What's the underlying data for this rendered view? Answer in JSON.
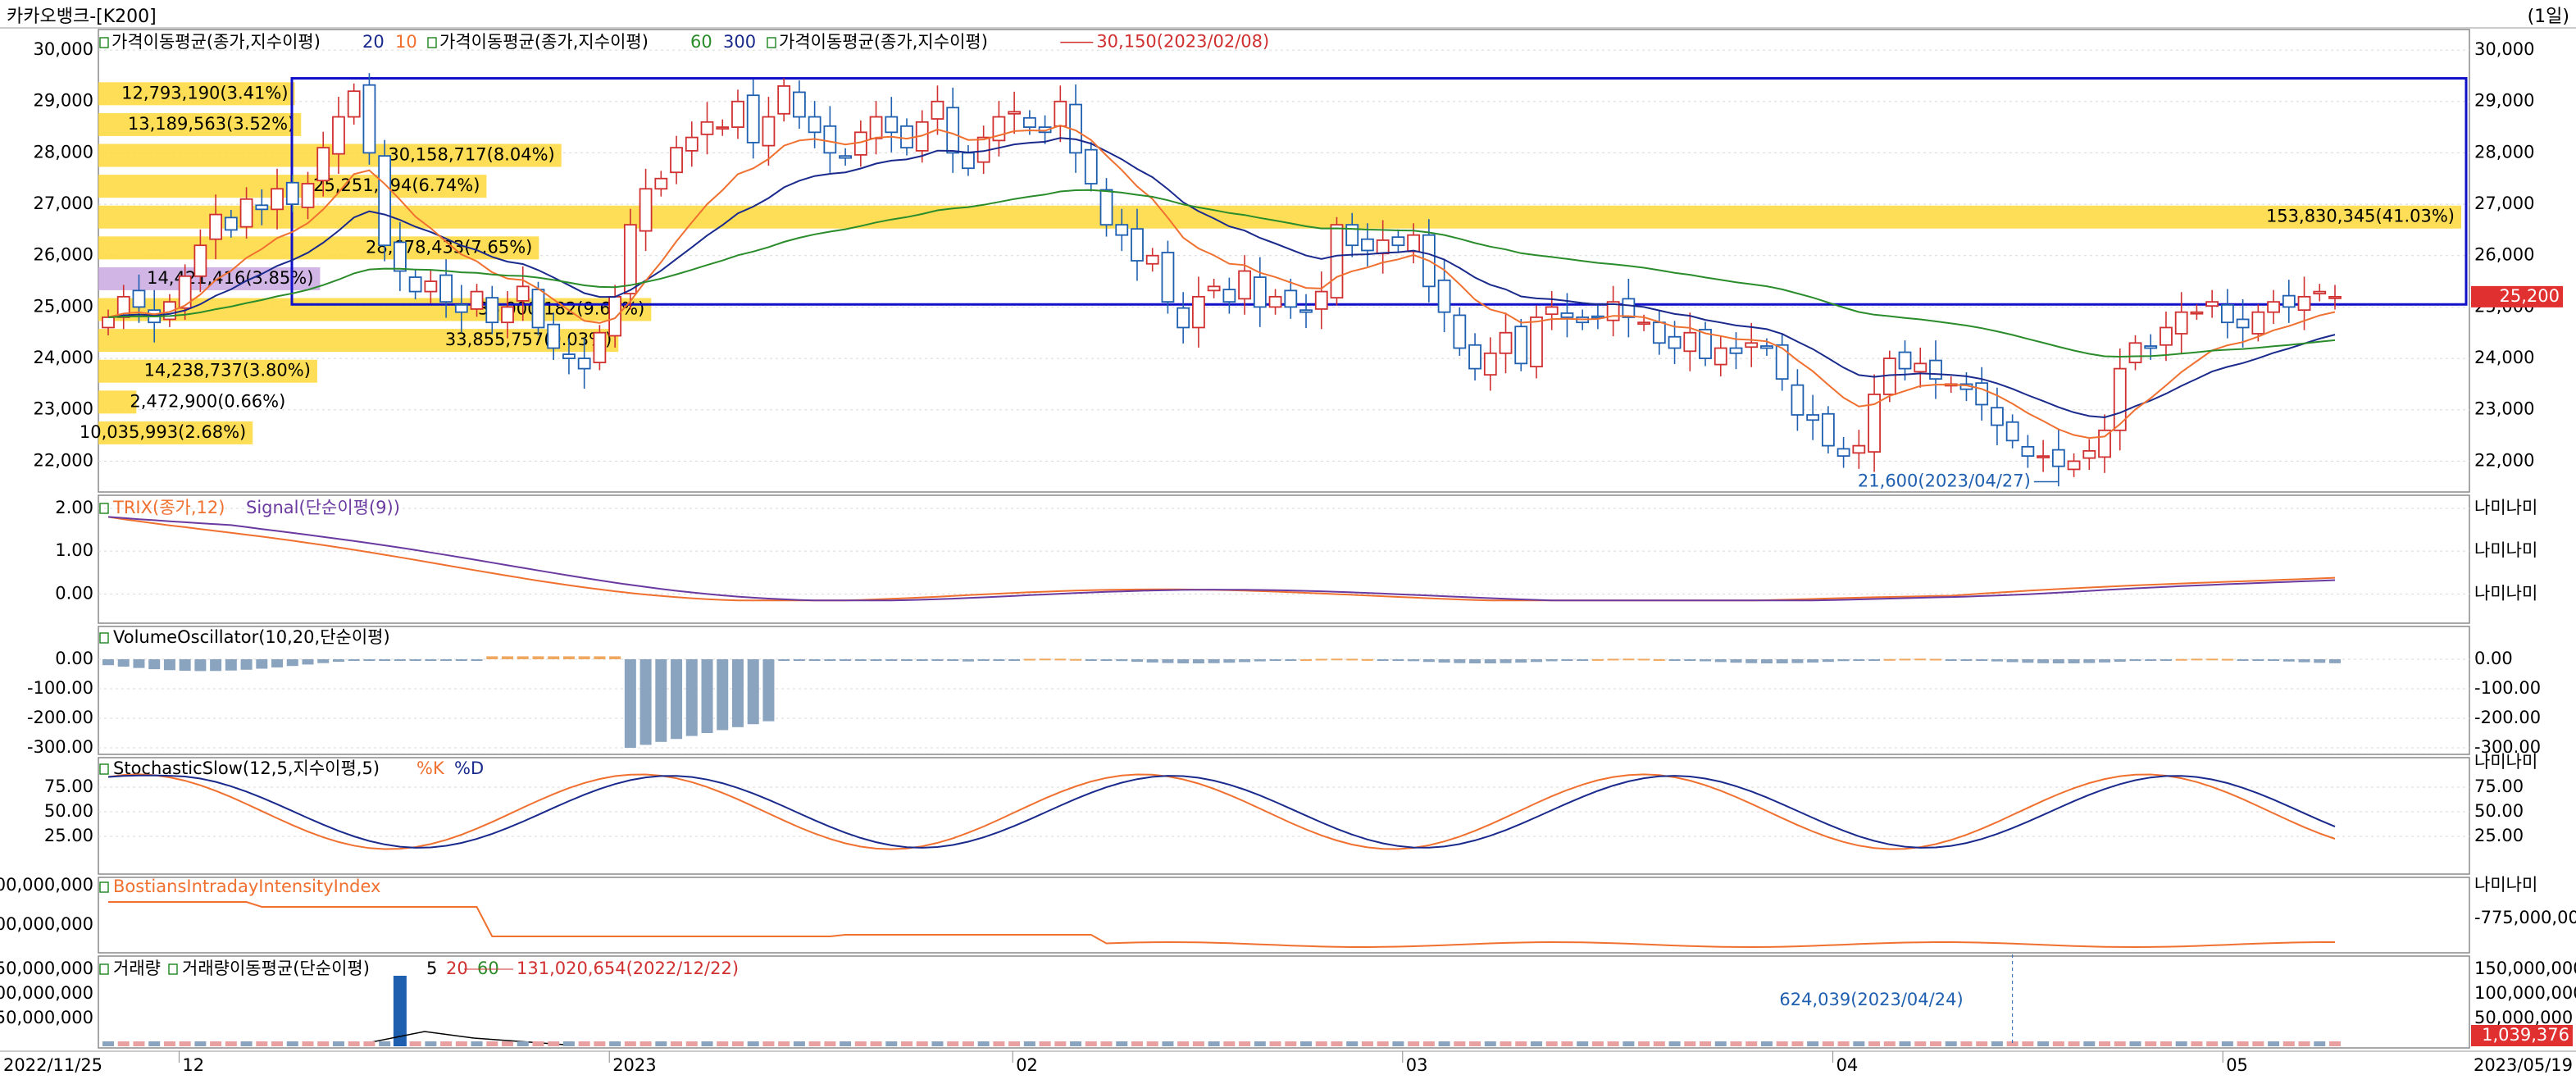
{
  "window": {
    "title": "카카오뱅크-[K200]",
    "period": "(1일)",
    "current_price": "25,200"
  },
  "price_panel": {
    "legend": [
      {
        "label": "가격이동평균(종가,지수이평)",
        "params": [
          {
            "text": "20",
            "color": "#1a2a8c"
          },
          {
            "text": "10",
            "color": "#f07030"
          }
        ]
      },
      {
        "label": "가격이동평균(종가,지수이평)",
        "params": [
          {
            "text": "60",
            "color": "#2a8c2a"
          },
          {
            "text": "300",
            "color": "#1a2a8c"
          }
        ]
      },
      {
        "label": "가격이동평균(종가,지수이평)",
        "params": []
      }
    ],
    "y_ticks": [
      "30,000",
      "29,000",
      "28,000",
      "27,000",
      "26,000",
      "25,000",
      "24,000",
      "23,000",
      "22,000"
    ],
    "high_annotation": "30,150(2023/02/08)",
    "low_annotation": "21,600(2023/04/27)",
    "volume_profile": [
      {
        "price": 29150,
        "label": "12,793,190(3.41%)",
        "pct": 3.41,
        "highlight": false
      },
      {
        "price": 28550,
        "label": "13,189,563(3.52%)",
        "pct": 3.52,
        "highlight": false
      },
      {
        "price": 27950,
        "label": "30,158,717(8.04%)",
        "pct": 8.04,
        "highlight": false
      },
      {
        "price": 27350,
        "label": "25,251,994(6.74%)",
        "pct": 6.74,
        "highlight": false
      },
      {
        "price": 26750,
        "label": "153,830,345(41.03%)",
        "pct": 41.03,
        "highlight": false
      },
      {
        "price": 26150,
        "label": "28,678,433(7.65%)",
        "pct": 7.65,
        "highlight": false
      },
      {
        "price": 25550,
        "label": "14,421,416(3.85%)",
        "pct": 3.85,
        "highlight": true
      },
      {
        "price": 24950,
        "label": "36,000,182(9.60%)",
        "pct": 9.6,
        "highlight": false
      },
      {
        "price": 24350,
        "label": "33,855,757(9.03%)",
        "pct": 9.03,
        "highlight": false
      },
      {
        "price": 23750,
        "label": "14,238,737(3.80%)",
        "pct": 3.8,
        "highlight": false
      },
      {
        "price": 23150,
        "label": "2,472,900(0.66%)",
        "pct": 0.66,
        "highlight": false
      },
      {
        "price": 22550,
        "label": "10,035,993(2.68%)",
        "pct": 2.68,
        "highlight": false
      }
    ]
  },
  "trix_panel": {
    "label_a": "TRIX(종가,12)",
    "label_b": "Signal(단순이평(9))",
    "y_ticks": [
      "2.00",
      "1.00",
      "0.00"
    ],
    "right_tick": "나미나미"
  },
  "vo_panel": {
    "label": "VolumeOscillator(10,20,단순이평)",
    "y_ticks": [
      "0.00",
      "-100.00",
      "-200.00",
      "-300.00"
    ]
  },
  "stoch_panel": {
    "label_a": "StochasticSlow(12,5,지수이평,5)",
    "label_b": "%K",
    "label_c": "%D",
    "y_ticks": [
      "75.00",
      "50.00",
      "25.00"
    ],
    "right_tick": "나미나미"
  },
  "bostian_panel": {
    "label": "BostiansIntradayIntensityIndex",
    "y_ticks_left": [
      "00,000,000",
      "00,000,000"
    ],
    "y_tick_right": "-775,000,000",
    "right_tick": "나미나미"
  },
  "volume_panel": {
    "label_a": "거래량",
    "label_b": "거래량이동평균(단순이평)",
    "params": [
      {
        "text": "5",
        "color": "#000000"
      },
      {
        "text": "20",
        "color": "#d03030"
      },
      {
        "text": "60",
        "color": "#2a8c2a"
      }
    ],
    "peak_annotation": "131,020,654(2022/12/22)",
    "low_annotation": "624,039(2023/04/24)",
    "y_ticks_left": [
      "50,000,000",
      "00,000,000",
      "50,000,000"
    ],
    "y_ticks_right": [
      "150,000,000",
      "100,000,000",
      "50,000,000"
    ],
    "last_value": "1,039,376"
  },
  "x_axis": {
    "start_date": "2022/11/25",
    "end_date": "2023/05/19",
    "months": [
      {
        "label": "12",
        "date": "2022-12-01"
      },
      {
        "label": "2023",
        "date": "2023-01-02"
      },
      {
        "label": "02",
        "date": "2023-02-01"
      },
      {
        "label": "03",
        "date": "2023-03-02"
      },
      {
        "label": "04",
        "date": "2023-04-03"
      },
      {
        "label": "05",
        "date": "2023-05-02"
      }
    ]
  },
  "chart_data": {
    "type": "candlestick",
    "title": "카카오뱅크-[K200]",
    "ylim": [
      21400,
      30400
    ],
    "close_series": [
      24800,
      25200,
      25000,
      24700,
      25100,
      25600,
      26200,
      26800,
      26500,
      27100,
      26900,
      27300,
      27000,
      27400,
      28100,
      28700,
      29200,
      28000,
      26200,
      25700,
      25300,
      25500,
      25100,
      24900,
      25300,
      24700,
      25000,
      25400,
      24600,
      24200,
      24000,
      23800,
      24500,
      25200,
      26600,
      27300,
      27500,
      28100,
      28300,
      28600,
      28500,
      29000,
      28200,
      28700,
      29300,
      28700,
      28400,
      28000,
      27900,
      28400,
      28700,
      28400,
      28100,
      28600,
      29000,
      28000,
      27700,
      28300,
      28700,
      28800,
      28500,
      28400,
      29000,
      28000,
      27400,
      26600,
      26400,
      25900,
      26000,
      25100,
      24600,
      25200,
      25400,
      25100,
      25700,
      25000,
      25200,
      25000,
      24900,
      25300,
      26600,
      26200,
      26100,
      26300,
      26200,
      26400,
      25400,
      24900,
      24200,
      23800,
      24100,
      24500,
      23900,
      24800,
      25000,
      24800,
      24700,
      24800,
      25100,
      24800,
      24700,
      24300,
      24200,
      24500,
      24000,
      24200,
      24100,
      24300,
      24200,
      23600,
      22900,
      22800,
      22300,
      22100,
      22300,
      23300,
      24000,
      23800,
      23900,
      23600,
      23500,
      23400,
      23100,
      22700,
      22400,
      22100,
      22100,
      21900,
      22000,
      22200,
      22600,
      23800,
      24300,
      24200,
      24600,
      24900,
      24900,
      25100,
      24700,
      24600,
      24900,
      25100,
      25000,
      25200,
      25300,
      25200
    ],
    "series": [
      {
        "name": "20",
        "color": "#1a2a8c"
      },
      {
        "name": "10",
        "color": "#f07030"
      },
      {
        "name": "60",
        "color": "#2a8c2a"
      }
    ],
    "colors": {
      "up": "#d03030",
      "down": "#1f5fb0",
      "box": "#1010c8",
      "profile": "#ffd83a",
      "profile_hl": "#c8a8e0"
    }
  }
}
